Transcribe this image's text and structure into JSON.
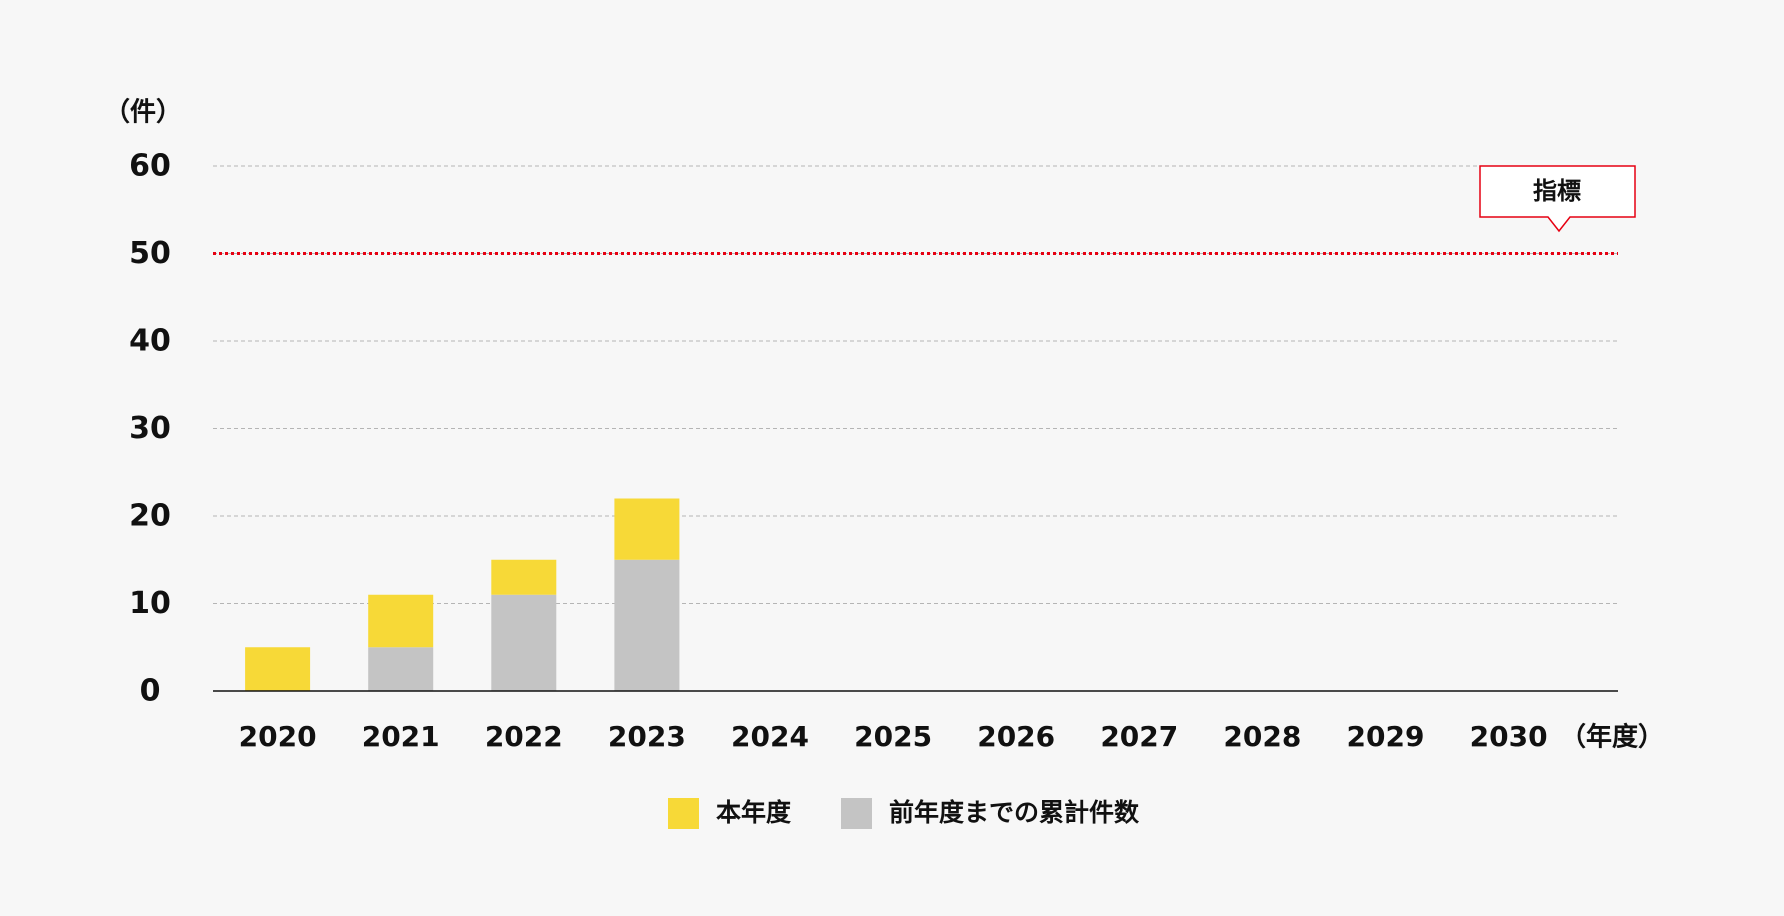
{
  "chart_data": {
    "type": "stacked_bar",
    "ylabel": "（件）",
    "xlabel": "（年度）",
    "categories": [
      "2020",
      "2021",
      "2022",
      "2023",
      "2024",
      "2025",
      "2026",
      "2027",
      "2028",
      "2029",
      "2030"
    ],
    "series": [
      {
        "name": "本年度",
        "color": "#f7d937",
        "values": [
          5,
          6,
          4,
          7,
          null,
          null,
          null,
          null,
          null,
          null,
          null
        ]
      },
      {
        "name": "前年度までの累計件数",
        "color": "#c4c4c4",
        "values": [
          0,
          5,
          11,
          15,
          null,
          null,
          null,
          null,
          null,
          null,
          null
        ]
      }
    ],
    "ylim": [
      0,
      60
    ],
    "yticks": [
      0,
      10,
      20,
      30,
      40,
      50,
      60
    ],
    "grid": true,
    "target": {
      "value": 50,
      "label": "指標",
      "color": "#e60012"
    }
  }
}
